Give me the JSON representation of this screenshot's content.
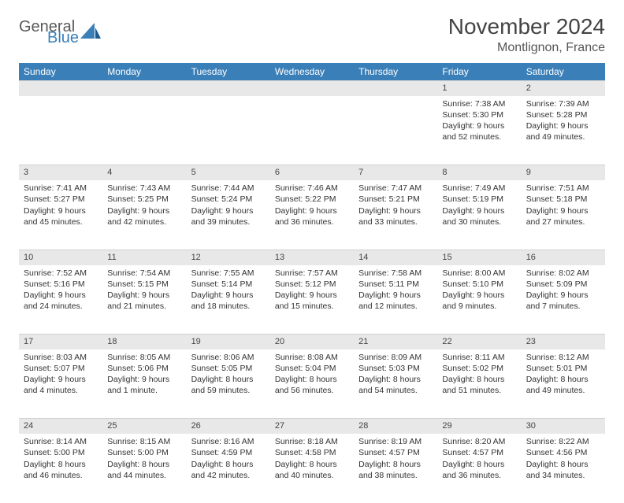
{
  "brand": {
    "word1": "General",
    "word2": "Blue",
    "text_color": "#5a5a5a",
    "accent_color": "#3a7fb8"
  },
  "title": "November 2024",
  "location": "Montlignon, France",
  "header_bg": "#3a7fb8",
  "header_fg": "#ffffff",
  "daynum_bg": "#e8e8e8",
  "weekdays": [
    "Sunday",
    "Monday",
    "Tuesday",
    "Wednesday",
    "Thursday",
    "Friday",
    "Saturday"
  ],
  "weeks": [
    [
      null,
      null,
      null,
      null,
      null,
      {
        "n": "1",
        "sr": "Sunrise: 7:38 AM",
        "ss": "Sunset: 5:30 PM",
        "dl": "Daylight: 9 hours and 52 minutes."
      },
      {
        "n": "2",
        "sr": "Sunrise: 7:39 AM",
        "ss": "Sunset: 5:28 PM",
        "dl": "Daylight: 9 hours and 49 minutes."
      }
    ],
    [
      {
        "n": "3",
        "sr": "Sunrise: 7:41 AM",
        "ss": "Sunset: 5:27 PM",
        "dl": "Daylight: 9 hours and 45 minutes."
      },
      {
        "n": "4",
        "sr": "Sunrise: 7:43 AM",
        "ss": "Sunset: 5:25 PM",
        "dl": "Daylight: 9 hours and 42 minutes."
      },
      {
        "n": "5",
        "sr": "Sunrise: 7:44 AM",
        "ss": "Sunset: 5:24 PM",
        "dl": "Daylight: 9 hours and 39 minutes."
      },
      {
        "n": "6",
        "sr": "Sunrise: 7:46 AM",
        "ss": "Sunset: 5:22 PM",
        "dl": "Daylight: 9 hours and 36 minutes."
      },
      {
        "n": "7",
        "sr": "Sunrise: 7:47 AM",
        "ss": "Sunset: 5:21 PM",
        "dl": "Daylight: 9 hours and 33 minutes."
      },
      {
        "n": "8",
        "sr": "Sunrise: 7:49 AM",
        "ss": "Sunset: 5:19 PM",
        "dl": "Daylight: 9 hours and 30 minutes."
      },
      {
        "n": "9",
        "sr": "Sunrise: 7:51 AM",
        "ss": "Sunset: 5:18 PM",
        "dl": "Daylight: 9 hours and 27 minutes."
      }
    ],
    [
      {
        "n": "10",
        "sr": "Sunrise: 7:52 AM",
        "ss": "Sunset: 5:16 PM",
        "dl": "Daylight: 9 hours and 24 minutes."
      },
      {
        "n": "11",
        "sr": "Sunrise: 7:54 AM",
        "ss": "Sunset: 5:15 PM",
        "dl": "Daylight: 9 hours and 21 minutes."
      },
      {
        "n": "12",
        "sr": "Sunrise: 7:55 AM",
        "ss": "Sunset: 5:14 PM",
        "dl": "Daylight: 9 hours and 18 minutes."
      },
      {
        "n": "13",
        "sr": "Sunrise: 7:57 AM",
        "ss": "Sunset: 5:12 PM",
        "dl": "Daylight: 9 hours and 15 minutes."
      },
      {
        "n": "14",
        "sr": "Sunrise: 7:58 AM",
        "ss": "Sunset: 5:11 PM",
        "dl": "Daylight: 9 hours and 12 minutes."
      },
      {
        "n": "15",
        "sr": "Sunrise: 8:00 AM",
        "ss": "Sunset: 5:10 PM",
        "dl": "Daylight: 9 hours and 9 minutes."
      },
      {
        "n": "16",
        "sr": "Sunrise: 8:02 AM",
        "ss": "Sunset: 5:09 PM",
        "dl": "Daylight: 9 hours and 7 minutes."
      }
    ],
    [
      {
        "n": "17",
        "sr": "Sunrise: 8:03 AM",
        "ss": "Sunset: 5:07 PM",
        "dl": "Daylight: 9 hours and 4 minutes."
      },
      {
        "n": "18",
        "sr": "Sunrise: 8:05 AM",
        "ss": "Sunset: 5:06 PM",
        "dl": "Daylight: 9 hours and 1 minute."
      },
      {
        "n": "19",
        "sr": "Sunrise: 8:06 AM",
        "ss": "Sunset: 5:05 PM",
        "dl": "Daylight: 8 hours and 59 minutes."
      },
      {
        "n": "20",
        "sr": "Sunrise: 8:08 AM",
        "ss": "Sunset: 5:04 PM",
        "dl": "Daylight: 8 hours and 56 minutes."
      },
      {
        "n": "21",
        "sr": "Sunrise: 8:09 AM",
        "ss": "Sunset: 5:03 PM",
        "dl": "Daylight: 8 hours and 54 minutes."
      },
      {
        "n": "22",
        "sr": "Sunrise: 8:11 AM",
        "ss": "Sunset: 5:02 PM",
        "dl": "Daylight: 8 hours and 51 minutes."
      },
      {
        "n": "23",
        "sr": "Sunrise: 8:12 AM",
        "ss": "Sunset: 5:01 PM",
        "dl": "Daylight: 8 hours and 49 minutes."
      }
    ],
    [
      {
        "n": "24",
        "sr": "Sunrise: 8:14 AM",
        "ss": "Sunset: 5:00 PM",
        "dl": "Daylight: 8 hours and 46 minutes."
      },
      {
        "n": "25",
        "sr": "Sunrise: 8:15 AM",
        "ss": "Sunset: 5:00 PM",
        "dl": "Daylight: 8 hours and 44 minutes."
      },
      {
        "n": "26",
        "sr": "Sunrise: 8:16 AM",
        "ss": "Sunset: 4:59 PM",
        "dl": "Daylight: 8 hours and 42 minutes."
      },
      {
        "n": "27",
        "sr": "Sunrise: 8:18 AM",
        "ss": "Sunset: 4:58 PM",
        "dl": "Daylight: 8 hours and 40 minutes."
      },
      {
        "n": "28",
        "sr": "Sunrise: 8:19 AM",
        "ss": "Sunset: 4:57 PM",
        "dl": "Daylight: 8 hours and 38 minutes."
      },
      {
        "n": "29",
        "sr": "Sunrise: 8:20 AM",
        "ss": "Sunset: 4:57 PM",
        "dl": "Daylight: 8 hours and 36 minutes."
      },
      {
        "n": "30",
        "sr": "Sunrise: 8:22 AM",
        "ss": "Sunset: 4:56 PM",
        "dl": "Daylight: 8 hours and 34 minutes."
      }
    ]
  ]
}
